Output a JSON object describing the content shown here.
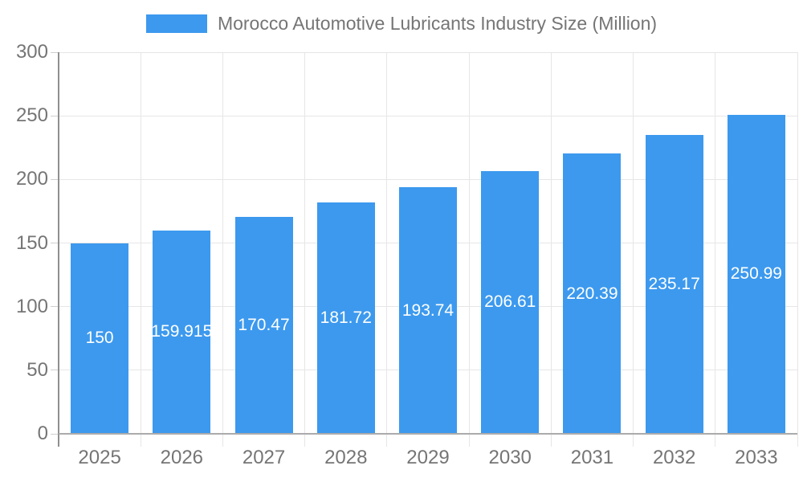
{
  "legend": {
    "label": "Morocco Automotive Lubricants Industry Size (Million)",
    "swatch_color": "#3C99EE"
  },
  "chart_data": {
    "type": "bar",
    "title": "Morocco Automotive Lubricants Industry Size (Million)",
    "series_name": "Morocco Automotive Lubricants Industry Size (Million)",
    "categories": [
      "2025",
      "2026",
      "2027",
      "2028",
      "2029",
      "2030",
      "2031",
      "2032",
      "2033"
    ],
    "values": [
      150,
      159.915,
      170.47,
      181.72,
      193.74,
      206.61,
      220.39,
      235.17,
      250.99
    ],
    "value_labels": [
      "150",
      "159.915",
      "170.47",
      "181.72",
      "193.74",
      "206.61",
      "220.39",
      "235.17",
      "250.99"
    ],
    "xlabel": "",
    "ylabel": "",
    "ylim": [
      0,
      300
    ],
    "yticks": [
      0,
      50,
      100,
      150,
      200,
      250,
      300
    ],
    "ytick_labels": [
      "0",
      "50",
      "100",
      "150",
      "200",
      "250",
      "300"
    ],
    "grid": true,
    "legend_position": "top",
    "bar_color": "#3C99EE",
    "value_label_color": "#FFFFFF"
  },
  "colors": {
    "bar": "#3C99EE",
    "axis_text": "#757575",
    "gridline": "#E6E6E6",
    "tick": "#CFCFCF",
    "axis_line": "#8F8F8F",
    "baseline": "#ABABAB",
    "background": "#FFFFFF"
  }
}
